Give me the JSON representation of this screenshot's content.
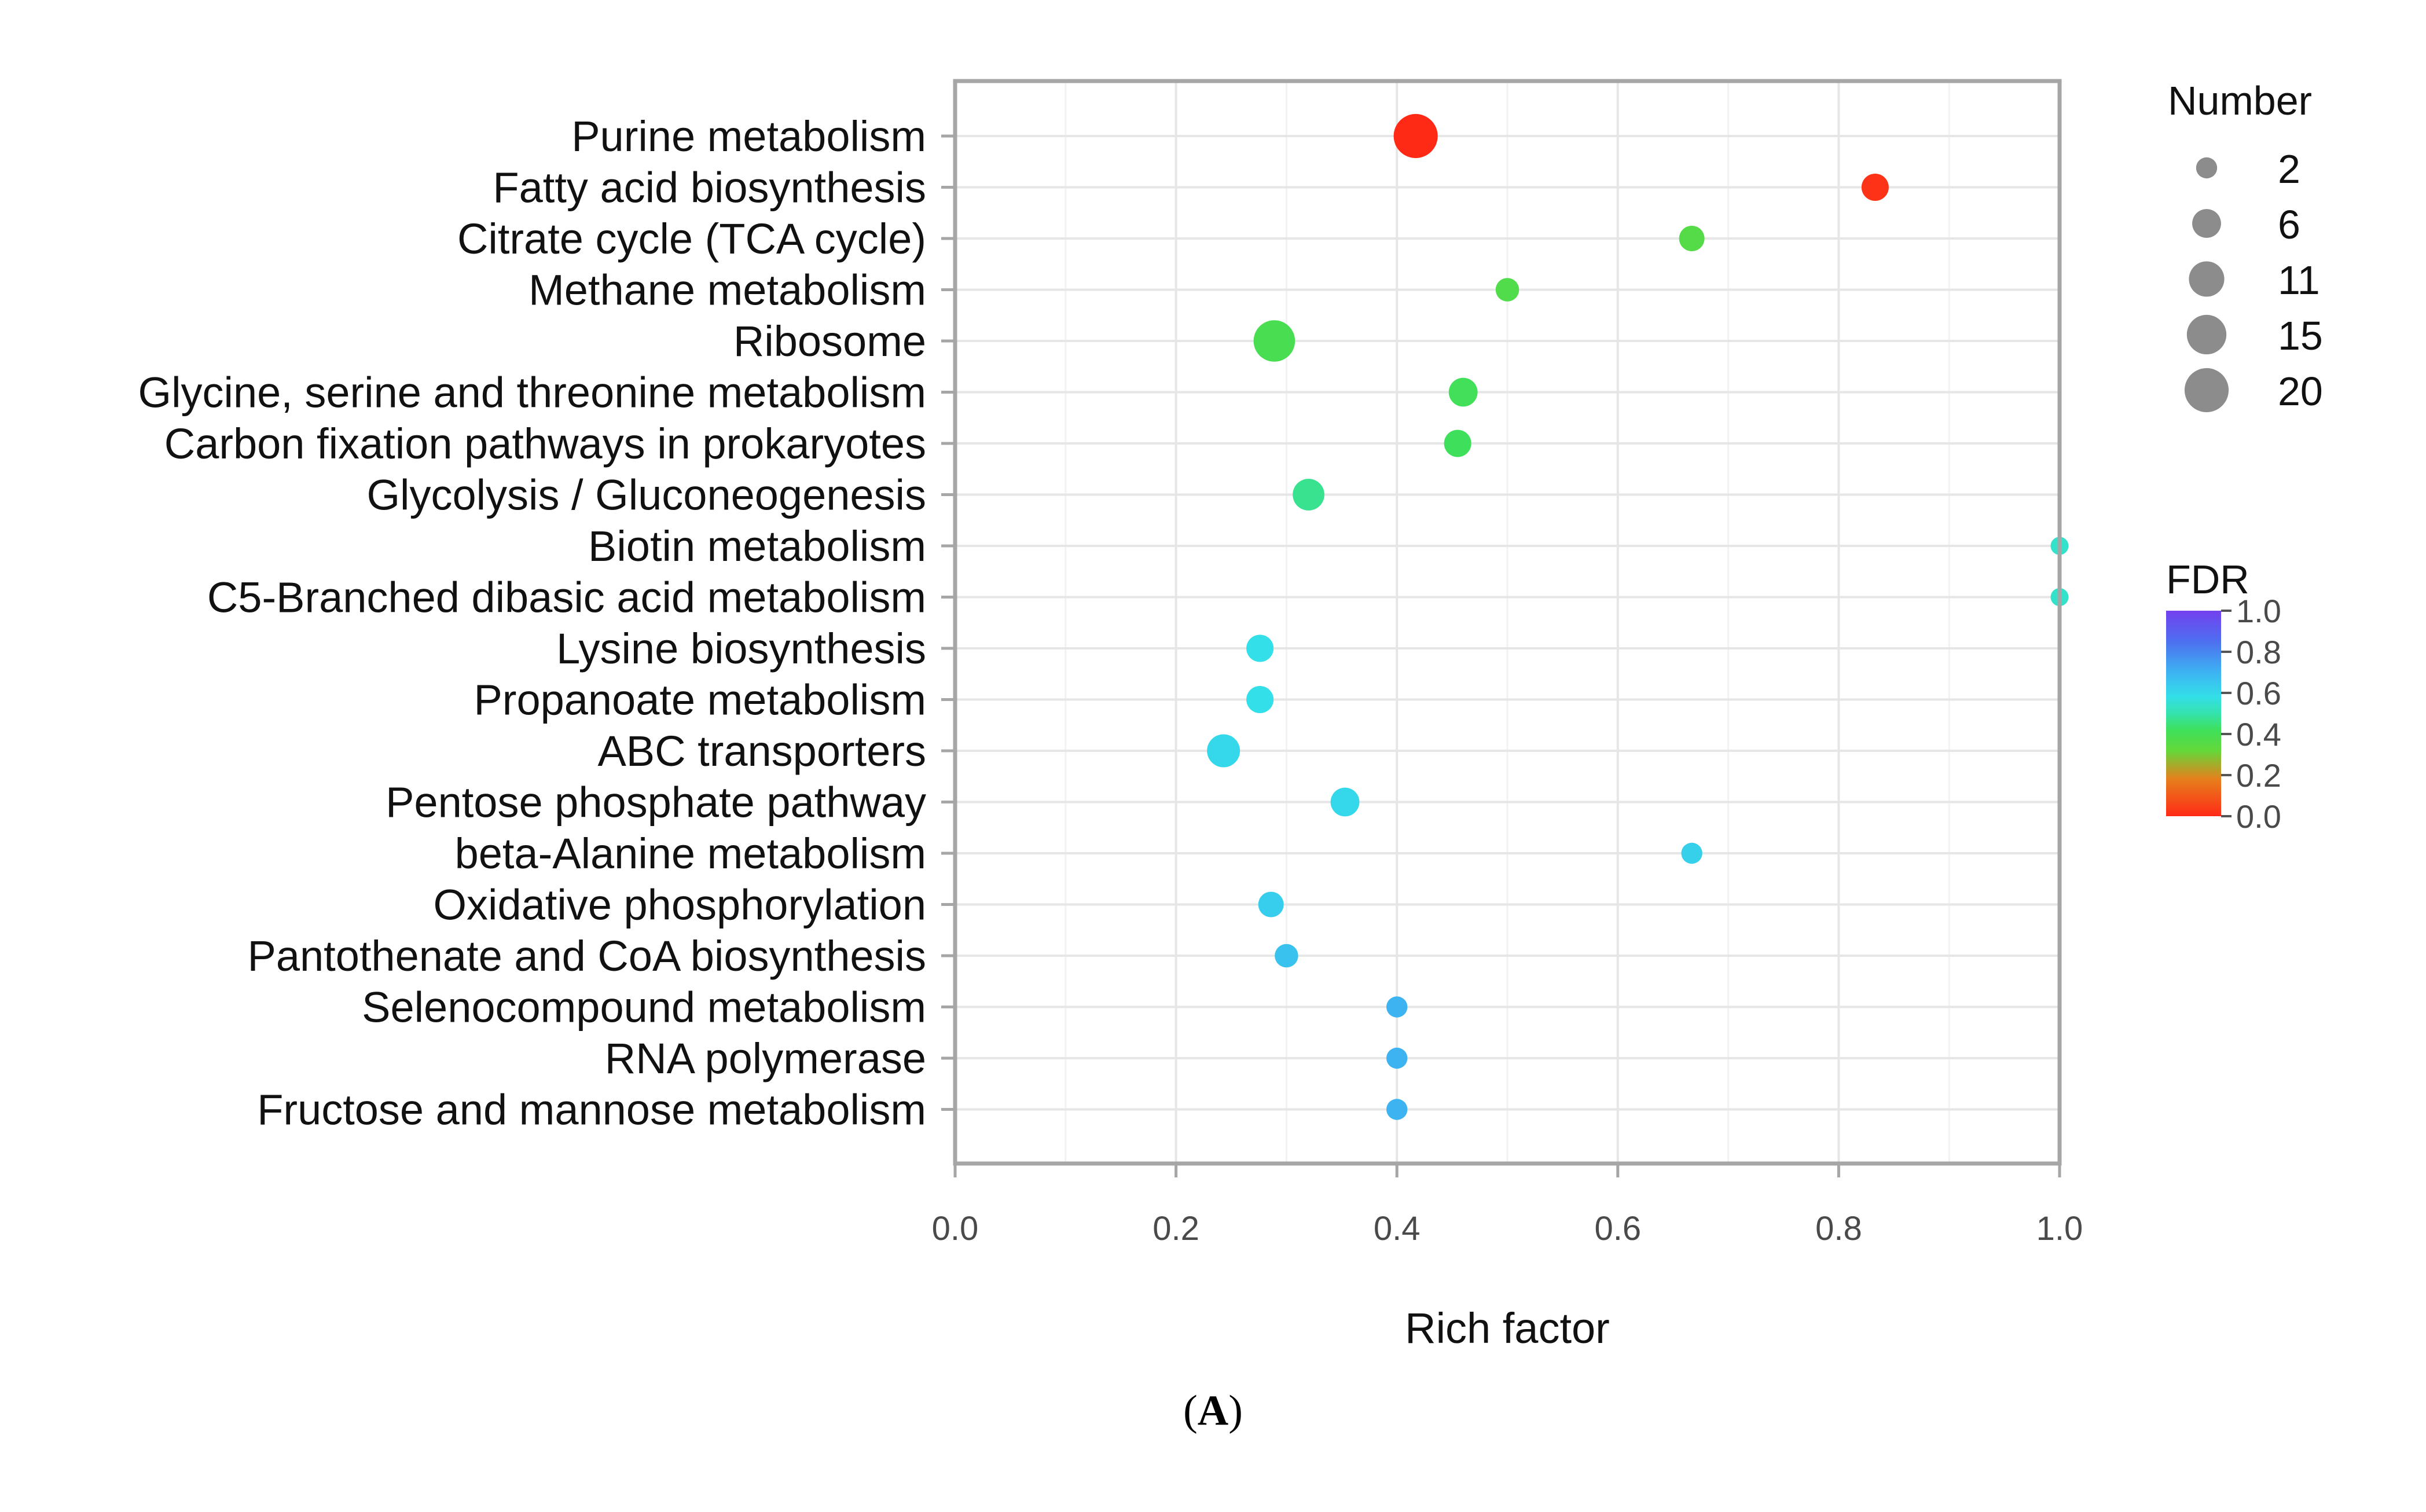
{
  "chart_data": {
    "type": "scatter",
    "subtype": "bubble",
    "xlabel": "Rich factor",
    "xlim": [
      0.0,
      1.0
    ],
    "xticks": [
      "0.0",
      "0.2",
      "0.4",
      "0.6",
      "0.8",
      "1.0"
    ],
    "categories": [
      "Purine metabolism",
      "Fatty acid biosynthesis",
      "Citrate cycle (TCA cycle)",
      "Methane metabolism",
      "Ribosome",
      "Glycine, serine and threonine metabolism",
      "Carbon fixation pathways in prokaryotes",
      "Glycolysis / Gluconeogenesis",
      "Biotin metabolism",
      "C5-Branched dibasic acid metabolism",
      "Lysine biosynthesis",
      "Propanoate metabolism",
      "ABC transporters",
      "Pentose phosphate pathway",
      "beta-Alanine metabolism",
      "Oxidative phosphorylation",
      "Pantothenate and CoA biosynthesis",
      "Selenocompound metabolism",
      "RNA polymerase",
      "Fructose and mannose metabolism"
    ],
    "points": [
      {
        "pathway": "Purine metabolism",
        "rich_factor": 0.417,
        "number": 20,
        "fdr": 0.0
      },
      {
        "pathway": "Fatty acid biosynthesis",
        "rich_factor": 0.833,
        "number": 5,
        "fdr": 0.02
      },
      {
        "pathway": "Citrate cycle (TCA cycle)",
        "rich_factor": 0.667,
        "number": 4,
        "fdr": 0.36
      },
      {
        "pathway": "Methane metabolism",
        "rich_factor": 0.5,
        "number": 3,
        "fdr": 0.37
      },
      {
        "pathway": "Ribosome",
        "rich_factor": 0.289,
        "number": 17,
        "fdr": 0.39
      },
      {
        "pathway": "Glycine, serine and threonine metabolism",
        "rich_factor": 0.46,
        "number": 6,
        "fdr": 0.41
      },
      {
        "pathway": "Carbon fixation pathways in prokaryotes",
        "rich_factor": 0.455,
        "number": 5,
        "fdr": 0.42
      },
      {
        "pathway": "Glycolysis / Gluconeogenesis",
        "rich_factor": 0.32,
        "number": 8,
        "fdr": 0.47
      },
      {
        "pathway": "Biotin metabolism",
        "rich_factor": 1.0,
        "number": 1,
        "fdr": 0.54
      },
      {
        "pathway": "C5-Branched dibasic acid metabolism",
        "rich_factor": 1.0,
        "number": 1,
        "fdr": 0.54
      },
      {
        "pathway": "Lysine biosynthesis",
        "rich_factor": 0.276,
        "number": 5,
        "fdr": 0.58
      },
      {
        "pathway": "Propanoate metabolism",
        "rich_factor": 0.276,
        "number": 5,
        "fdr": 0.58
      },
      {
        "pathway": "ABC transporters",
        "rich_factor": 0.243,
        "number": 9,
        "fdr": 0.6
      },
      {
        "pathway": "Pentose phosphate pathway",
        "rich_factor": 0.353,
        "number": 6,
        "fdr": 0.6
      },
      {
        "pathway": "beta-Alanine metabolism",
        "rich_factor": 0.667,
        "number": 2,
        "fdr": 0.62
      },
      {
        "pathway": "Oxidative phosphorylation",
        "rich_factor": 0.286,
        "number": 4,
        "fdr": 0.63
      },
      {
        "pathway": "Pantothenate and CoA biosynthesis",
        "rich_factor": 0.3,
        "number": 3,
        "fdr": 0.66
      },
      {
        "pathway": "Selenocompound metabolism",
        "rich_factor": 0.4,
        "number": 2,
        "fdr": 0.7
      },
      {
        "pathway": "RNA polymerase",
        "rich_factor": 0.4,
        "number": 2,
        "fdr": 0.7
      },
      {
        "pathway": "Fructose and mannose metabolism",
        "rich_factor": 0.4,
        "number": 2,
        "fdr": 0.7
      }
    ],
    "size_legend": {
      "title": "Number",
      "values": [
        2,
        6,
        11,
        15,
        20
      ],
      "labels": [
        "2",
        "6",
        "11",
        "15",
        "20"
      ]
    },
    "color_legend": {
      "title": "FDR",
      "range": [
        0.0,
        1.0
      ],
      "tick_labels": [
        "1.0",
        "0.8",
        "0.6",
        "0.4",
        "0.2",
        "0.0"
      ],
      "gradient_stops": [
        {
          "value": 0.0,
          "color": "#ff2a16"
        },
        {
          "value": 0.18,
          "color": "#e77f1c"
        },
        {
          "value": 0.32,
          "color": "#63d83a"
        },
        {
          "value": 0.42,
          "color": "#3ee05b"
        },
        {
          "value": 0.5,
          "color": "#34e3ad"
        },
        {
          "value": 0.58,
          "color": "#33dfe8"
        },
        {
          "value": 0.7,
          "color": "#3db3f2"
        },
        {
          "value": 0.85,
          "color": "#4d6ff0"
        },
        {
          "value": 1.0,
          "color": "#7340ee"
        }
      ]
    },
    "grid": true,
    "legend_position": "right"
  },
  "panel_label": {
    "open": "(",
    "letter": "A",
    "close": ")"
  },
  "colors": {
    "grid": "#e6e6e6",
    "axis": "#a6a6a6",
    "label_text": "#111111",
    "tick_text": "#4a4a4a",
    "legend_dot": "#8c8c8c"
  }
}
